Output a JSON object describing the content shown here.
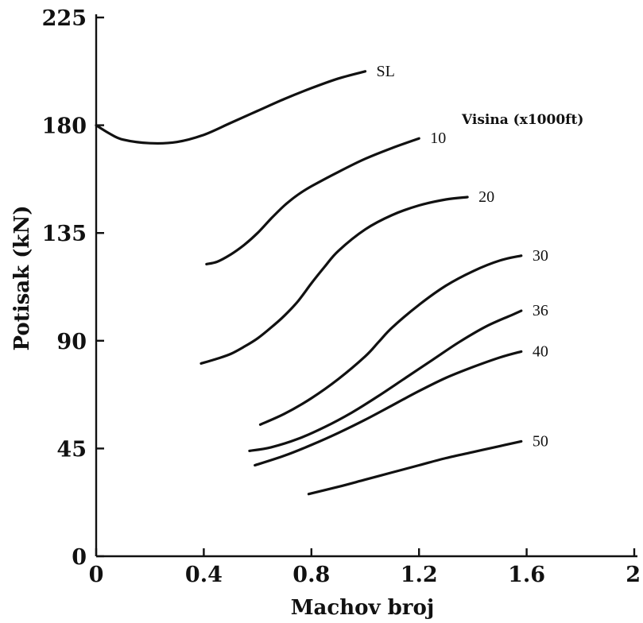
{
  "chart_data": {
    "type": "line",
    "title": "",
    "xlabel": "Machov broj",
    "ylabel": "Potisak (kN)",
    "legend_title": "Visina (x1000ft)",
    "xlim": [
      0,
      2
    ],
    "ylim": [
      0,
      225
    ],
    "xticks": [
      0,
      0.4,
      0.8,
      1.2,
      1.6,
      2
    ],
    "xtick_labels": [
      "0",
      "0.4",
      "0.8",
      "1.2",
      "1.6",
      "2"
    ],
    "yticks": [
      0,
      45,
      90,
      135,
      180,
      225
    ],
    "ytick_labels": [
      "0",
      "45",
      "90",
      "135",
      "180",
      "225"
    ],
    "grid": false,
    "legend_placement": "inline labels at line ends",
    "line_color": "#111111",
    "series": [
      {
        "name": "SL",
        "x": [
          0.0,
          0.05,
          0.1,
          0.2,
          0.3,
          0.4,
          0.5,
          0.6,
          0.7,
          0.8,
          0.9,
          1.0
        ],
        "y": [
          180,
          176.5,
          174,
          172.5,
          173,
          176,
          181,
          186,
          191,
          195.5,
          199.5,
          202.5
        ]
      },
      {
        "name": "10",
        "x": [
          0.41,
          0.45,
          0.5,
          0.55,
          0.6,
          0.65,
          0.7,
          0.75,
          0.8,
          0.9,
          1.0,
          1.1,
          1.2
        ],
        "y": [
          122,
          123,
          126,
          130,
          135,
          141,
          146.5,
          151,
          154.5,
          160.5,
          166,
          170.5,
          174.5
        ]
      },
      {
        "name": "20",
        "x": [
          0.39,
          0.45,
          0.5,
          0.55,
          0.6,
          0.65,
          0.7,
          0.75,
          0.8,
          0.85,
          0.9,
          1.0,
          1.1,
          1.2,
          1.3,
          1.38
        ],
        "y": [
          80.5,
          82.5,
          84.5,
          87.5,
          91,
          95.5,
          100.5,
          106.5,
          114,
          121,
          127.5,
          136.5,
          142.5,
          146.5,
          149,
          150
        ]
      },
      {
        "name": "30",
        "x": [
          0.61,
          0.7,
          0.8,
          0.9,
          1.0,
          1.05,
          1.1,
          1.2,
          1.3,
          1.4,
          1.5,
          1.58
        ],
        "y": [
          55,
          59.5,
          66,
          74,
          83.5,
          89.5,
          95.5,
          105,
          113,
          119,
          123.5,
          125.5
        ]
      },
      {
        "name": "36",
        "x": [
          0.57,
          0.65,
          0.75,
          0.85,
          0.95,
          1.05,
          1.15,
          1.25,
          1.35,
          1.45,
          1.55,
          1.58
        ],
        "y": [
          44,
          45.5,
          49,
          54,
          60,
          67,
          74.5,
          82,
          89.5,
          96,
          101,
          102.5
        ]
      },
      {
        "name": "40",
        "x": [
          0.59,
          0.7,
          0.8,
          0.9,
          1.0,
          1.1,
          1.2,
          1.3,
          1.4,
          1.5,
          1.58
        ],
        "y": [
          38,
          42,
          46.5,
          51.5,
          57,
          63,
          69,
          74.5,
          79,
          83,
          85.5
        ]
      },
      {
        "name": "50",
        "x": [
          0.79,
          0.9,
          1.0,
          1.1,
          1.2,
          1.3,
          1.4,
          1.5,
          1.58
        ],
        "y": [
          26,
          29,
          32,
          35,
          38,
          41,
          43.5,
          46,
          48
        ]
      }
    ]
  }
}
